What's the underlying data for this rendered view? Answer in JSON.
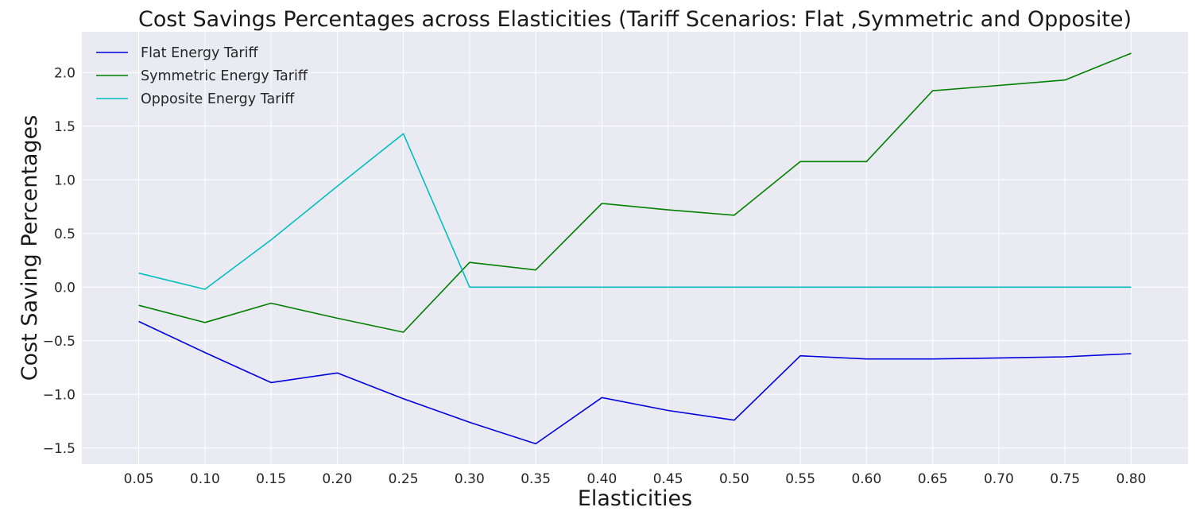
{
  "chart_data": {
    "type": "line",
    "title": "Cost Savings Percentages across Elasticities (Tariff Scenarios: Flat ,Symmetric and Opposite)",
    "xlabel": "Elasticities",
    "ylabel": "Cost Saving Percentages",
    "x": [
      0.05,
      0.1,
      0.15,
      0.2,
      0.25,
      0.3,
      0.35,
      0.4,
      0.45,
      0.5,
      0.55,
      0.6,
      0.65,
      0.7,
      0.75,
      0.8
    ],
    "x_tick_labels": [
      "0.05",
      "0.10",
      "0.15",
      "0.20",
      "0.25",
      "0.30",
      "0.35",
      "0.40",
      "0.45",
      "0.50",
      "0.55",
      "0.60",
      "0.65",
      "0.70",
      "0.75",
      "0.80"
    ],
    "y_ticks": [
      -1.5,
      -1.0,
      -0.5,
      0.0,
      0.5,
      1.0,
      1.5,
      2.0
    ],
    "y_tick_labels": [
      "−1.5",
      "−1.0",
      "−0.5",
      "0.0",
      "0.5",
      "1.0",
      "1.5",
      "2.0"
    ],
    "xlim": [
      0.007,
      0.843
    ],
    "ylim": [
      -1.65,
      2.38
    ],
    "grid": true,
    "legend_position": "top-left",
    "series": [
      {
        "name": "Flat Energy Tariff",
        "color": "#0000dd",
        "values": [
          -0.32,
          -0.61,
          -0.89,
          -0.8,
          -1.04,
          -1.26,
          -1.46,
          -1.03,
          -1.15,
          -1.24,
          -0.64,
          -0.67,
          -0.67,
          -0.66,
          -0.65,
          -0.62
        ]
      },
      {
        "name": "Symmetric Energy Tariff",
        "color": "#008000",
        "values": [
          -0.17,
          -0.33,
          -0.15,
          -0.29,
          -0.42,
          0.23,
          0.16,
          0.78,
          0.72,
          0.67,
          1.17,
          1.17,
          1.83,
          1.88,
          1.93,
          2.18
        ]
      },
      {
        "name": "Opposite Energy Tariff",
        "color": "#00bfbf",
        "values": [
          0.13,
          -0.02,
          0.44,
          0.94,
          1.43,
          0.0,
          0.0,
          0.0,
          0.0,
          0.0,
          0.0,
          0.0,
          0.0,
          0.0,
          0.0,
          0.0
        ]
      }
    ]
  },
  "colors": {
    "plot_background": "#eaeaf2",
    "grid": "#ffffff"
  }
}
